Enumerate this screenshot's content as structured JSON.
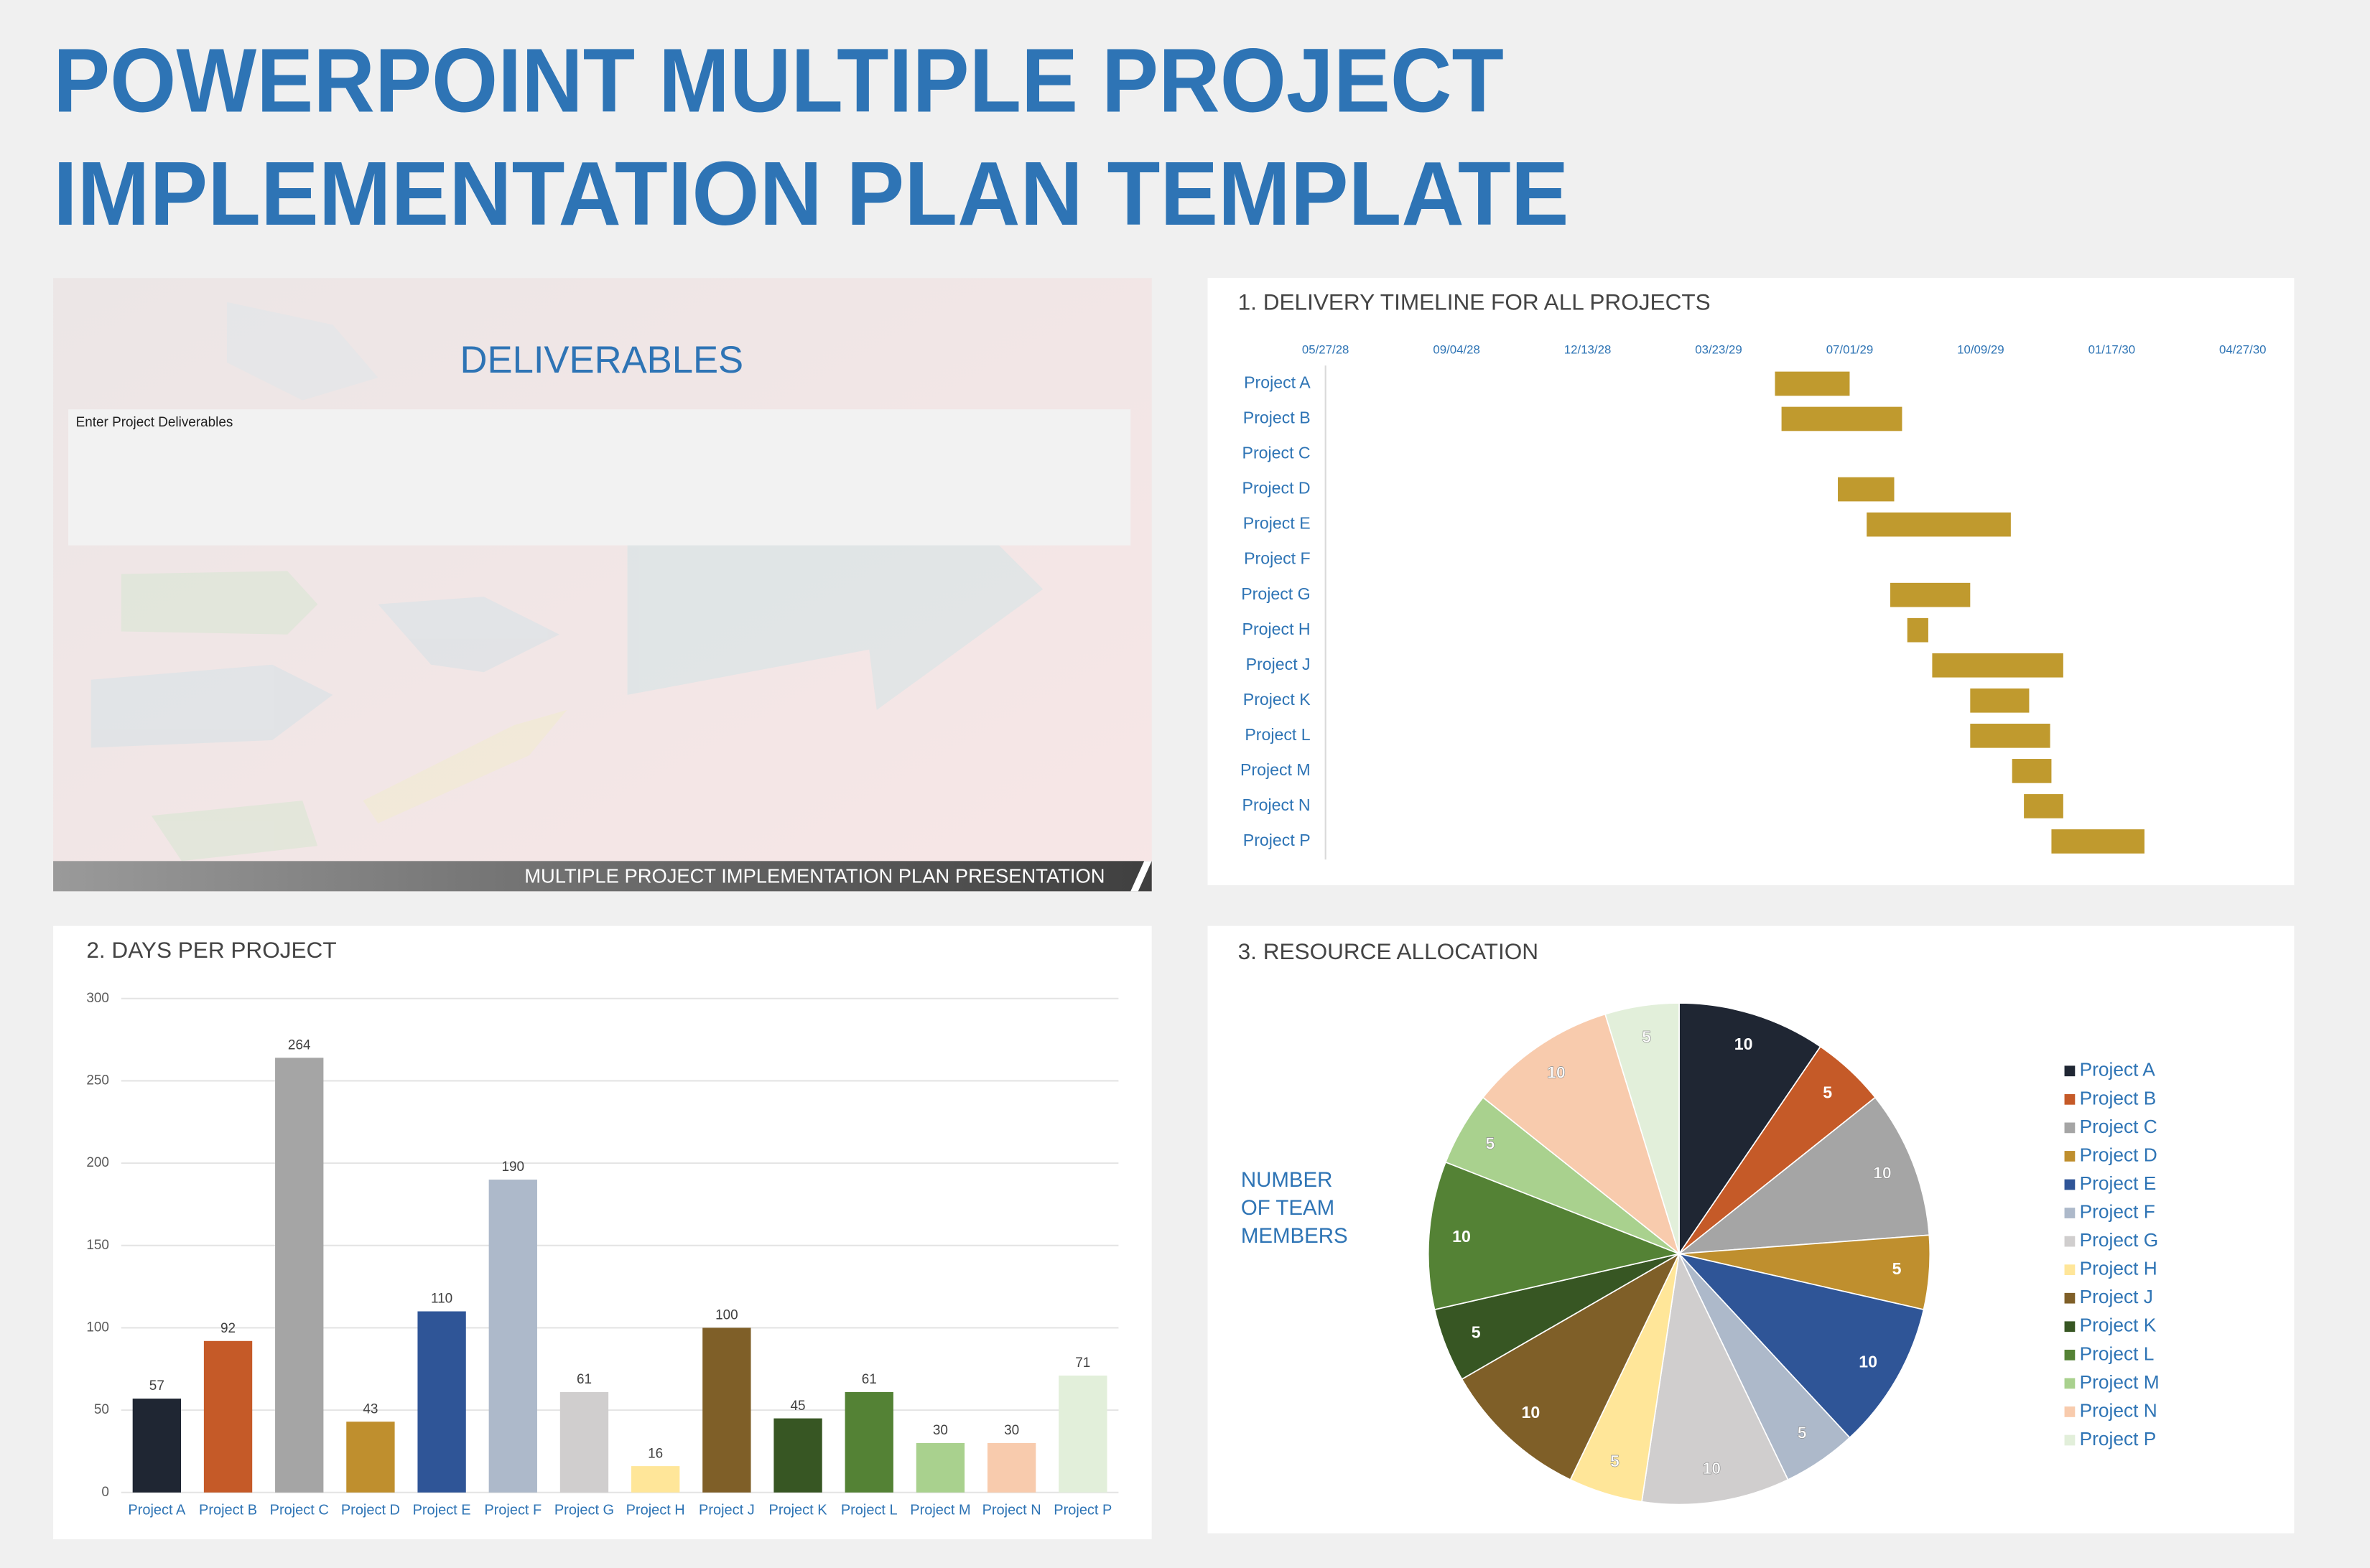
{
  "title": [
    "POWERPOINT MULTIPLE PROJECT",
    "IMPLEMENTATION PLAN TEMPLATE"
  ],
  "slide": {
    "title": "DELIVERABLES",
    "text": "Enter Project Deliverables",
    "footer": "MULTIPLE PROJECT IMPLEMENTATION PLAN PRESENTATION"
  },
  "chart_data": [
    {
      "type": "gantt",
      "title": "1. DELIVERY TIMELINE FOR ALL PROJECTS",
      "color": "#c09a2e",
      "categories": [
        "Project A",
        "Project B",
        "Project C",
        "Project D",
        "Project E",
        "Project F",
        "Project G",
        "Project H",
        "Project J",
        "Project K",
        "Project L",
        "Project M",
        "Project N",
        "Project P"
      ],
      "start": [
        "2029-05-05",
        "2029-05-10",
        null,
        "2029-06-22",
        "2029-07-14",
        null,
        "2029-08-01",
        "2029-08-14",
        "2029-09-02",
        "2029-10-01",
        "2029-10-01",
        "2029-11-02",
        "2029-11-11",
        "2029-12-02"
      ],
      "values": [
        57,
        92,
        null,
        43,
        110,
        null,
        61,
        16,
        100,
        45,
        61,
        30,
        30,
        71
      ],
      "xlim": [
        "2028-05-27",
        "2030-05-27"
      ],
      "xticks": [
        {
          "value": "2028-05-27",
          "label": "05/27/28"
        },
        {
          "value": "2028-09-04",
          "label": "09/04/28"
        },
        {
          "value": "2028-12-13",
          "label": "12/13/28"
        },
        {
          "value": "2029-03-23",
          "label": "03/23/29"
        },
        {
          "value": "2029-07-01",
          "label": "07/01/29"
        },
        {
          "value": "2029-10-09",
          "label": "10/09/29"
        },
        {
          "value": "2030-01-17",
          "label": "01/17/30"
        },
        {
          "value": "2030-04-27",
          "label": "04/27/30"
        }
      ]
    },
    {
      "type": "bar",
      "title": "2. DAYS PER PROJECT",
      "categories": [
        "Project A",
        "Project B",
        "Project C",
        "Project D",
        "Project E",
        "Project F",
        "Project G",
        "Project H",
        "Project J",
        "Project K",
        "Project L",
        "Project M",
        "Project N",
        "Project P"
      ],
      "values": [
        57,
        92,
        264,
        43,
        110,
        190,
        61,
        16,
        100,
        45,
        61,
        30,
        30,
        71
      ],
      "colors": [
        "#1f2633",
        "#c55a28",
        "#a5a5a5",
        "#bf8f2e",
        "#2f5597",
        "#adb9ca",
        "#d0cece",
        "#ffe699",
        "#7f5f28",
        "#375623",
        "#548235",
        "#a9d18e",
        "#f8cbad",
        "#e2efda"
      ],
      "ylim": [
        0,
        300
      ],
      "yticks": [
        0,
        50,
        100,
        150,
        200,
        250,
        300
      ],
      "grid": true
    },
    {
      "type": "pie",
      "title": "3. RESOURCE ALLOCATION",
      "label": [
        "NUMBER",
        "OF TEAM",
        "MEMBERS"
      ],
      "categories": [
        "Project A",
        "Project B",
        "Project C",
        "Project D",
        "Project E",
        "Project F",
        "Project G",
        "Project H",
        "Project J",
        "Project K",
        "Project L",
        "Project M",
        "Project N",
        "Project P"
      ],
      "values": [
        10,
        5,
        10,
        5,
        10,
        5,
        10,
        5,
        10,
        5,
        10,
        5,
        10,
        5
      ],
      "colors": [
        "#1f2633",
        "#c55a28",
        "#a5a5a5",
        "#bf8f2e",
        "#2f5597",
        "#adb9ca",
        "#d0cece",
        "#ffe699",
        "#7f5f28",
        "#375623",
        "#548235",
        "#a9d18e",
        "#f8cbad",
        "#e2efda"
      ],
      "legend": "right"
    }
  ]
}
